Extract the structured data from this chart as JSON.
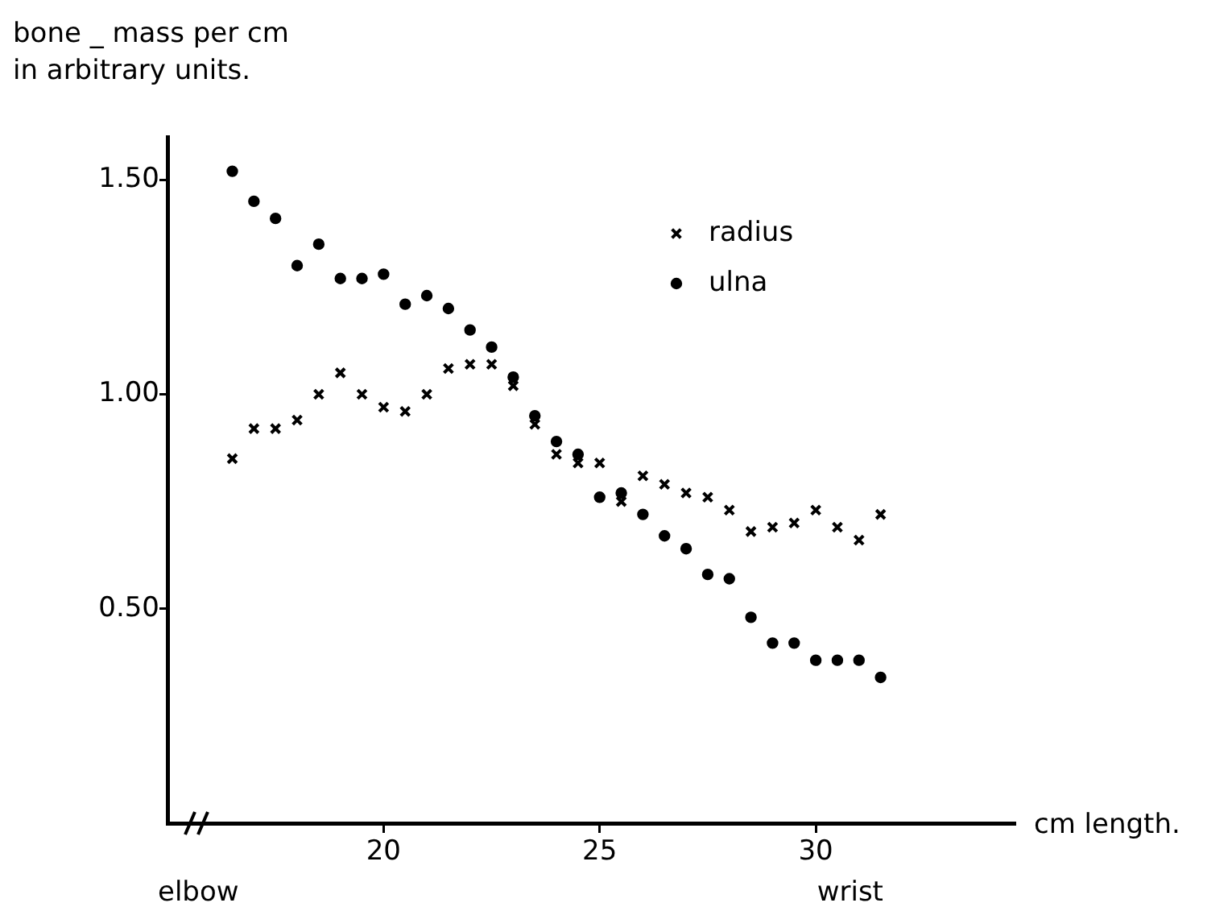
{
  "chart_data": {
    "type": "scatter",
    "ylabel": "bone _ mass per cm\nin arbitrary units.",
    "xlabel": "cm length.",
    "annotations": [
      "elbow",
      "wrist"
    ],
    "x": [
      16.5,
      17,
      17.5,
      18,
      18.5,
      19,
      19.5,
      20,
      20.5,
      21,
      21.5,
      22,
      22.5,
      23,
      23.5,
      24,
      24.5,
      25,
      25.5,
      26,
      26.5,
      27,
      27.5,
      28,
      28.5,
      29,
      29.5,
      30,
      30.5,
      31,
      31.5
    ],
    "series": [
      {
        "name": "radius",
        "color": "#000000",
        "marker": "cross",
        "values": [
          0.85,
          0.92,
          0.92,
          0.94,
          1.0,
          1.05,
          1.0,
          0.97,
          0.96,
          1.0,
          1.06,
          1.07,
          1.07,
          1.02,
          0.93,
          0.86,
          0.84,
          0.84,
          0.75,
          0.81,
          0.79,
          0.77,
          0.76,
          0.73,
          0.68,
          0.69,
          0.7,
          0.73,
          0.69,
          0.66,
          0.72
        ]
      },
      {
        "name": "ulna",
        "color": "#000000",
        "marker": "circle",
        "values": [
          1.52,
          1.45,
          1.41,
          1.3,
          1.35,
          1.27,
          1.27,
          1.28,
          1.21,
          1.23,
          1.2,
          1.15,
          1.11,
          1.04,
          0.95,
          0.89,
          0.86,
          0.76,
          0.77,
          0.72,
          0.67,
          0.64,
          0.58,
          0.57,
          0.48,
          0.42,
          0.42,
          0.38,
          0.38,
          0.38,
          0.34
        ]
      }
    ],
    "xlim": [
      15,
      34.6
    ],
    "xticks": [
      20,
      25,
      30
    ],
    "ylim": [
      0,
      1.6
    ],
    "yticks": [
      {
        "value": 0.5,
        "label": "0.50"
      },
      {
        "value": 1.0,
        "label": "1.00"
      },
      {
        "value": 1.5,
        "label": "1.50"
      }
    ],
    "grid": false,
    "legend": "top right"
  }
}
